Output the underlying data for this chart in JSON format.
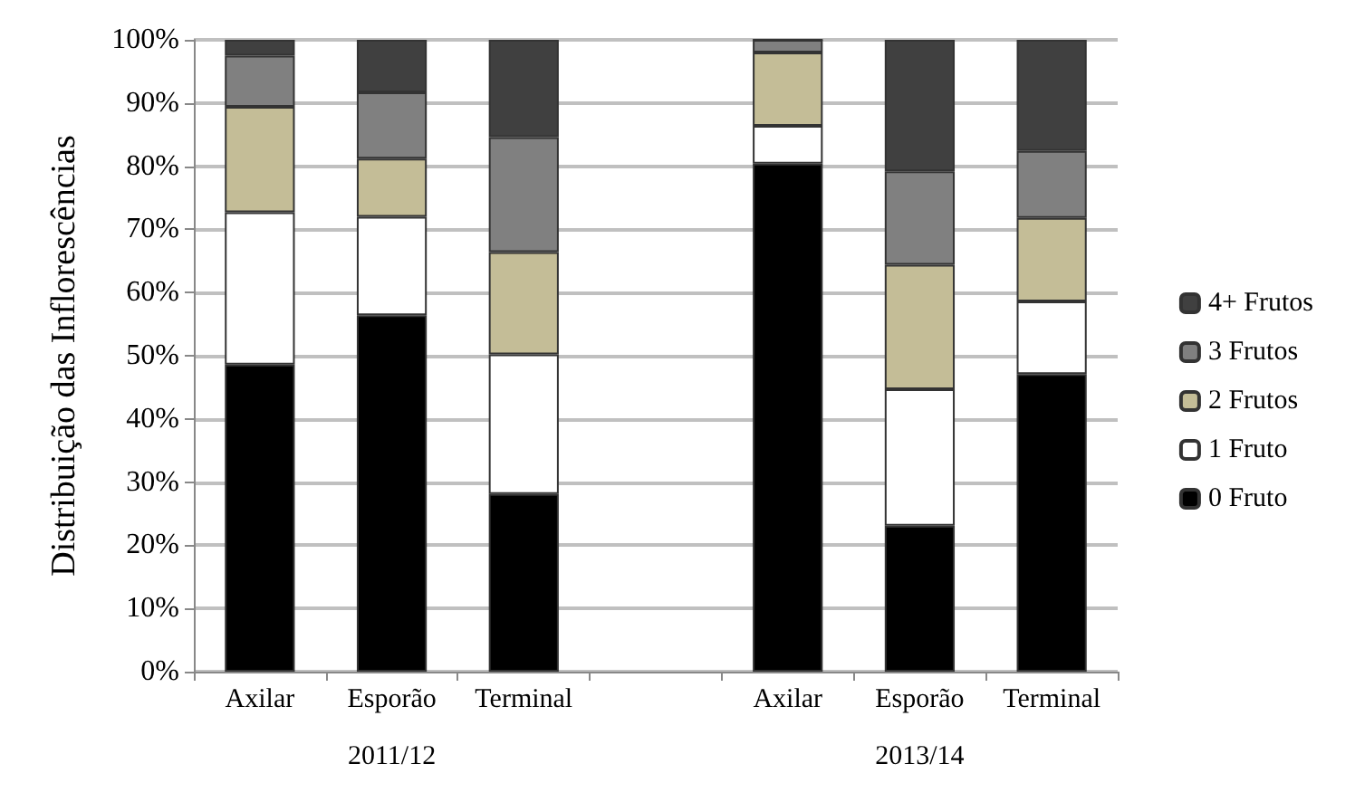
{
  "chart_data": {
    "type": "bar",
    "stacked": true,
    "ylabel": "Distribuição das Inflorescências",
    "categories": [
      "Axilar",
      "Esporão",
      "Terminal",
      null,
      "Axilar",
      "Esporão",
      "Terminal"
    ],
    "series": [
      {
        "name": "0 Fruto",
        "color": "#000000",
        "values": [
          48.6,
          56.4,
          28.1,
          null,
          80.4,
          23.1,
          47.1
        ]
      },
      {
        "name": "1 Fruto",
        "color": "#ffffff",
        "values": [
          24.1,
          15.6,
          22.1,
          null,
          6.0,
          21.6,
          11.5
        ]
      },
      {
        "name": "2 Frutos",
        "color": "#c4bd97",
        "values": [
          16.7,
          9.2,
          16.2,
          null,
          11.6,
          19.7,
          13.2
        ]
      },
      {
        "name": "3 Frutos",
        "color": "#808080",
        "values": [
          8.1,
          10.5,
          18.2,
          null,
          2.0,
          14.8,
          10.6
        ]
      },
      {
        "name": "4+ Frutos",
        "color": "#404040",
        "values": [
          2.5,
          8.3,
          15.4,
          null,
          0,
          20.8,
          17.6
        ]
      }
    ],
    "ylim": [
      0,
      100
    ],
    "yticks": [
      {
        "value": 0,
        "label": "0%"
      },
      {
        "value": 10,
        "label": "10%"
      },
      {
        "value": 20,
        "label": "20%"
      },
      {
        "value": 30,
        "label": "30%"
      },
      {
        "value": 40,
        "label": "40%"
      },
      {
        "value": 50,
        "label": "50%"
      },
      {
        "value": 60,
        "label": "60%"
      },
      {
        "value": 70,
        "label": "70%"
      },
      {
        "value": 80,
        "label": "80%"
      },
      {
        "value": 90,
        "label": "90%"
      },
      {
        "value": 100,
        "label": "100%"
      }
    ],
    "grid": "y",
    "legend": "right",
    "annotations": [
      "2011/12",
      "2013/14"
    ]
  }
}
